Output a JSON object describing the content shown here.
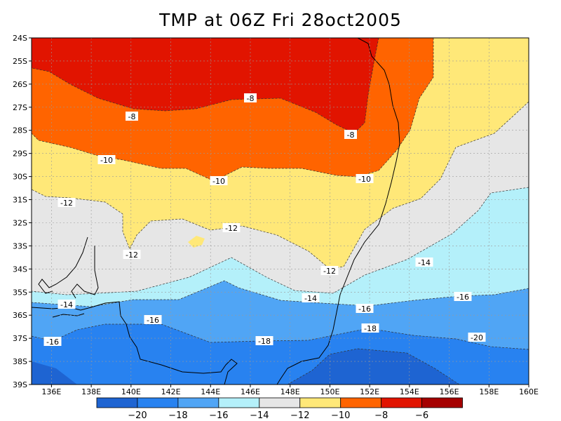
{
  "title": "TMP at 06Z Fri 28oct2005",
  "lat_labels": [
    "24S",
    "25S",
    "26S",
    "27S",
    "28S",
    "29S",
    "30S",
    "31S",
    "32S",
    "33S",
    "34S",
    "35S",
    "36S",
    "37S",
    "38S",
    "39S"
  ],
  "lon_labels": [
    "136E",
    "138E",
    "140E",
    "142E",
    "144E",
    "146E",
    "148E",
    "150E",
    "152E",
    "154E",
    "156E",
    "158E",
    "160E"
  ],
  "contour_labels": [
    "-8",
    "-8",
    "-8",
    "-10",
    "-10",
    "-10",
    "-12",
    "-12",
    "-12",
    "-12",
    "-14",
    "-14",
    "-14",
    "-16",
    "-16",
    "-16",
    "-16",
    "-18",
    "-18",
    "-20"
  ],
  "colorbar": {
    "labels": [
      "−20",
      "−18",
      "−16",
      "−14",
      "−12",
      "−10",
      "−8",
      "−6"
    ],
    "colors": [
      "#1e64d2",
      "#2882f0",
      "#50a5f5",
      "#b4f0fa",
      "#e6e6e6",
      "#ffe878",
      "#ff6400",
      "#e11400",
      "#a50000"
    ]
  },
  "fill_colors": {
    "band_m20": "#1e64d2",
    "band_m18": "#2882f0",
    "band_m16": "#50a5f5",
    "band_m14": "#b4f0fa",
    "band_m12": "#e6e6e6",
    "band_m10": "#ffe878",
    "band_m8": "#ff6400",
    "band_m6": "#e11400"
  }
}
